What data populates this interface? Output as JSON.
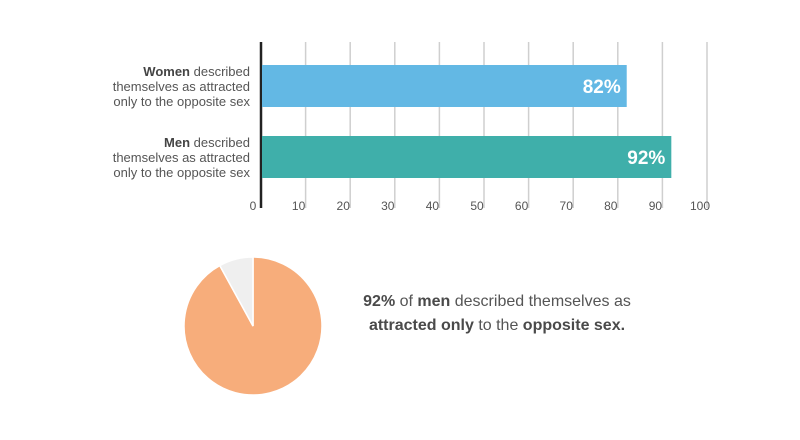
{
  "chart_data": [
    {
      "type": "bar",
      "orientation": "horizontal",
      "categories": [
        {
          "bold": "Women",
          "rest": " described",
          "line2": "themselves as attracted",
          "line3": "only to the opposite sex"
        },
        {
          "bold": "Men",
          "rest": " described",
          "line2": "themselves as attracted",
          "line3": "only to the opposite sex"
        }
      ],
      "values": [
        82,
        92
      ],
      "value_labels": [
        "82%",
        "92%"
      ],
      "colors": [
        "#63b8e4",
        "#3fafaa"
      ],
      "xlim": [
        0,
        100
      ],
      "xticks": [
        "0",
        "10",
        "20",
        "30",
        "40",
        "50",
        "60",
        "70",
        "80",
        "90",
        "100"
      ],
      "grid": true
    },
    {
      "type": "pie",
      "slices": [
        {
          "value": 92,
          "color": "#f7ad7b"
        },
        {
          "value": 8,
          "color": "#efefef"
        }
      ]
    }
  ],
  "caption": {
    "p1": "92%",
    "p2": " of ",
    "p3": "men",
    "p4": " described themselves as ",
    "p5": "attracted only",
    "p6": " to the ",
    "p7": "opposite sex."
  }
}
